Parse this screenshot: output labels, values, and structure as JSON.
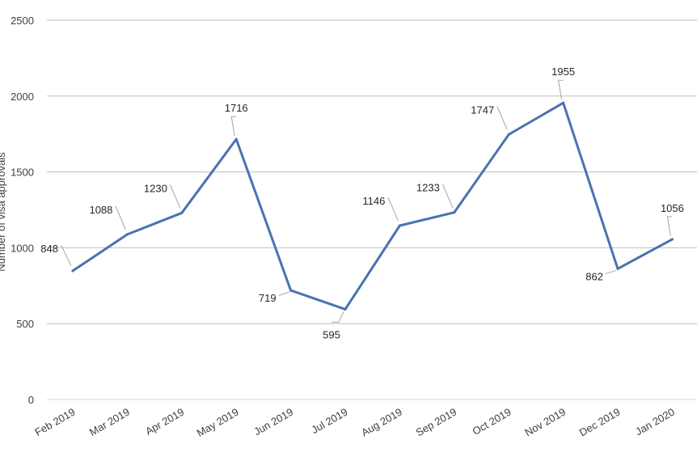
{
  "chart_data": {
    "type": "line",
    "title": "",
    "xlabel": "",
    "ylabel": "Number of visa approvals",
    "ylim": [
      0,
      2500
    ],
    "yticks": [
      0,
      500,
      1000,
      1500,
      2000,
      2500
    ],
    "grid": true,
    "categories": [
      "Feb 2019",
      "Mar 2019",
      "Apr 2019",
      "May 2019",
      "Jun 2019",
      "Jul 2019",
      "Aug 2019",
      "Sep 2019",
      "Oct 2019",
      "Nov 2019",
      "Dec 2019",
      "Jan 2020"
    ],
    "series": [
      {
        "values": [
          848,
          1088,
          1230,
          1716,
          719,
          595,
          1146,
          1233,
          1747,
          1955,
          862,
          1056
        ],
        "color": "#4a72b0"
      }
    ],
    "data_label_positions": [
      "left",
      "left",
      "left",
      "above",
      "left",
      "below",
      "left",
      "left",
      "left",
      "above",
      "left",
      "above"
    ]
  }
}
